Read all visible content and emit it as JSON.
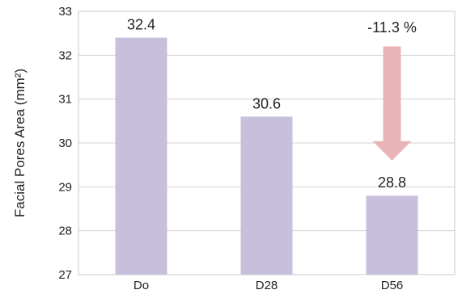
{
  "chart_data": {
    "type": "bar",
    "categories": [
      "Do",
      "D28",
      "D56"
    ],
    "values": [
      32.4,
      30.6,
      28.8
    ],
    "data_labels": [
      "32.4",
      "30.6",
      "28.8"
    ],
    "title": "",
    "xlabel": "",
    "ylabel": "Facial Pores Area (mm²)",
    "ylim": [
      27,
      33
    ],
    "yticks": [
      "27",
      "28",
      "29",
      "30",
      "31",
      "32",
      "33"
    ],
    "grid": true,
    "legend": "none",
    "bar_color": "#c8bfdc",
    "annotation": {
      "text": "-11.3 %",
      "arrow_color": "#e9b4b6",
      "from_value": 32.2,
      "to_value": 29.6,
      "category_index": 2
    }
  }
}
